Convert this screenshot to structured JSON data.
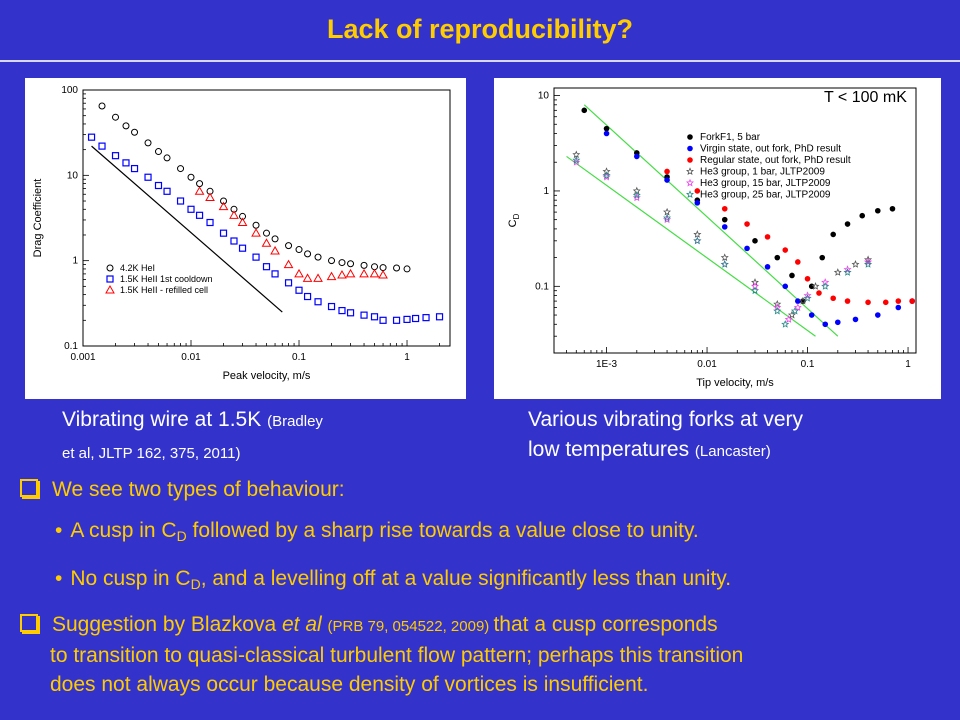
{
  "slide": {
    "title": "Lack of reproducibility?"
  },
  "captions": {
    "left_main": "Vibrating wire at 1.5K",
    "left_ref_a": "(Bradley",
    "left_ref_b": "et al,  JLTP 162, 375, 2011)",
    "right_main_a": "Various vibrating forks at very",
    "right_main_b": "low temperatures",
    "right_ref": "(Lancaster)"
  },
  "bullets": {
    "b1": "We see two types of behaviour:",
    "s1_a": "A cusp in C",
    "s1_sub": "D",
    "s1_b": " followed by a sharp rise towards a value close to unity.",
    "s2_a": "No cusp in C",
    "s2_sub": "D",
    "s2_b": ",  and a levelling off at a value significantly less than unity.",
    "b2_a": "Suggestion by Blazkova",
    "b2_em": " et al ",
    "b2_ref": " (PRB 79, 054522, 2009) ",
    "b2_b": "that a cusp corresponds",
    "b2_line2": "to transition to quasi-classical turbulent flow pattern;  perhaps this transition",
    "b2_line3": "does not always occur because density of vortices is insufficient."
  },
  "colors": {
    "background": "#3333cc",
    "title": "#ffcc00",
    "bullets": "#ffcc00",
    "captions": "#ffffff"
  },
  "chart_data": [
    {
      "type": "scatter",
      "xlabel": "Peak velocity, m/s",
      "ylabel": "Drag Coefficient",
      "xscale": "log",
      "yscale": "log",
      "xlim": [
        0.001,
        2.5
      ],
      "ylim": [
        0.1,
        100
      ],
      "xticks": [
        "0.001",
        "0.01",
        "0.1",
        "1"
      ],
      "yticks": [
        "0.1",
        "1",
        "10",
        "100"
      ],
      "legend_position": "lower-left",
      "series": [
        {
          "name": "4.2K HeI",
          "marker": "circle",
          "color": "#000000",
          "x": [
            0.0015,
            0.002,
            0.0025,
            0.003,
            0.004,
            0.005,
            0.006,
            0.008,
            0.01,
            0.012,
            0.015,
            0.02,
            0.025,
            0.03,
            0.04,
            0.05,
            0.06,
            0.08,
            0.1,
            0.12,
            0.15,
            0.2,
            0.25,
            0.3,
            0.4,
            0.5,
            0.6,
            0.8,
            1.0
          ],
          "y": [
            65,
            48,
            38,
            32,
            24,
            19,
            16,
            12,
            9.5,
            8,
            6.5,
            5,
            4,
            3.3,
            2.6,
            2.1,
            1.8,
            1.5,
            1.35,
            1.2,
            1.1,
            1.0,
            0.95,
            0.92,
            0.88,
            0.85,
            0.83,
            0.82,
            0.8
          ]
        },
        {
          "name": "1.5K HeII 1st cooldown",
          "marker": "square",
          "color": "#0000ff",
          "x": [
            0.0012,
            0.0015,
            0.002,
            0.0025,
            0.003,
            0.004,
            0.005,
            0.006,
            0.008,
            0.01,
            0.012,
            0.015,
            0.02,
            0.025,
            0.03,
            0.04,
            0.05,
            0.06,
            0.08,
            0.1,
            0.12,
            0.15,
            0.2,
            0.25,
            0.3,
            0.4,
            0.5,
            0.6,
            0.8,
            1.0,
            1.2,
            1.5,
            2.0
          ],
          "y": [
            28,
            22,
            17,
            14,
            12,
            9.5,
            7.6,
            6.5,
            5,
            4,
            3.4,
            2.8,
            2.1,
            1.7,
            1.4,
            1.1,
            0.85,
            0.7,
            0.55,
            0.45,
            0.38,
            0.33,
            0.29,
            0.26,
            0.245,
            0.23,
            0.22,
            0.2,
            0.2,
            0.205,
            0.21,
            0.215,
            0.22
          ]
        },
        {
          "name": "1.5K HeII - refilled cell",
          "marker": "triangle",
          "color": "#ff0000",
          "x": [
            0.012,
            0.015,
            0.02,
            0.025,
            0.03,
            0.04,
            0.05,
            0.06,
            0.08,
            0.1,
            0.12,
            0.15,
            0.2,
            0.25,
            0.3,
            0.4,
            0.5,
            0.6
          ],
          "y": [
            6.5,
            5.5,
            4.3,
            3.4,
            2.8,
            2.1,
            1.6,
            1.3,
            0.9,
            0.7,
            0.62,
            0.62,
            0.65,
            0.68,
            0.7,
            0.7,
            0.7,
            0.68
          ]
        }
      ]
    },
    {
      "type": "scatter",
      "title": "T < 100 mK",
      "xlabel": "Tip velocity, m/s",
      "ylabel": "C",
      "ylabel_sub": "D",
      "xscale": "log",
      "yscale": "log",
      "xlim": [
        0.0003,
        1.2
      ],
      "ylim": [
        0.02,
        12
      ],
      "xticks": [
        "1E-3",
        "0.01",
        "0.1",
        "1"
      ],
      "yticks": [
        "0.1",
        "1",
        "10"
      ],
      "legend_position": "top-right",
      "series": [
        {
          "name": "ForkF1, 5 bar",
          "marker": "circle",
          "color": "#000000",
          "x": [
            0.0006,
            0.001,
            0.002,
            0.004,
            0.008,
            0.015,
            0.03,
            0.05,
            0.07,
            0.09,
            0.11,
            0.14,
            0.18,
            0.25,
            0.35,
            0.5,
            0.7
          ],
          "y": [
            7,
            4.5,
            2.5,
            1.4,
            0.8,
            0.5,
            0.3,
            0.2,
            0.13,
            0.07,
            0.1,
            0.2,
            0.35,
            0.45,
            0.55,
            0.62,
            0.65
          ]
        },
        {
          "name": "Virgin state, out fork, PhD result",
          "marker": "circle",
          "color": "#0000ff",
          "x": [
            0.001,
            0.002,
            0.004,
            0.008,
            0.015,
            0.025,
            0.04,
            0.06,
            0.08,
            0.11,
            0.15,
            0.2,
            0.3,
            0.5,
            0.8,
            1.1
          ],
          "y": [
            4,
            2.3,
            1.3,
            0.75,
            0.42,
            0.25,
            0.16,
            0.1,
            0.07,
            0.05,
            0.04,
            0.042,
            0.045,
            0.05,
            0.06,
            0.07
          ]
        },
        {
          "name": "Regular state, out fork, PhD result",
          "marker": "circle",
          "color": "#ff0000",
          "x": [
            0.004,
            0.008,
            0.015,
            0.025,
            0.04,
            0.06,
            0.08,
            0.1,
            0.13,
            0.18,
            0.25,
            0.4,
            0.6,
            0.8,
            1.1
          ],
          "y": [
            1.6,
            1.0,
            0.65,
            0.45,
            0.33,
            0.24,
            0.18,
            0.12,
            0.085,
            0.075,
            0.07,
            0.068,
            0.068,
            0.07,
            0.07
          ]
        },
        {
          "name": "He3 group, 1 bar, JLTP2009",
          "marker": "star",
          "color": "#555555",
          "x": [
            0.0005,
            0.001,
            0.002,
            0.004,
            0.008,
            0.015,
            0.03,
            0.05,
            0.07,
            0.09,
            0.12,
            0.2,
            0.3,
            0.4
          ],
          "y": [
            2.4,
            1.6,
            1.0,
            0.6,
            0.35,
            0.2,
            0.11,
            0.065,
            0.05,
            0.07,
            0.1,
            0.14,
            0.17,
            0.19
          ]
        },
        {
          "name": "He3 group, 15 bar, JLTP2009",
          "marker": "star",
          "color": "#ee44ee",
          "x": [
            0.0005,
            0.001,
            0.002,
            0.004,
            0.008,
            0.015,
            0.03,
            0.05,
            0.065,
            0.08,
            0.1,
            0.15,
            0.25,
            0.4
          ],
          "y": [
            2.0,
            1.4,
            0.85,
            0.5,
            0.3,
            0.17,
            0.1,
            0.06,
            0.045,
            0.06,
            0.08,
            0.11,
            0.15,
            0.18
          ]
        },
        {
          "name": "He3 group, 25 bar, JLTP2009",
          "marker": "star",
          "color": "#228888",
          "x": [
            0.0005,
            0.001,
            0.002,
            0.004,
            0.008,
            0.015,
            0.03,
            0.05,
            0.06,
            0.075,
            0.1,
            0.15,
            0.25,
            0.4
          ],
          "y": [
            2.1,
            1.45,
            0.9,
            0.52,
            0.3,
            0.17,
            0.09,
            0.055,
            0.04,
            0.055,
            0.075,
            0.1,
            0.14,
            0.17
          ]
        }
      ]
    }
  ]
}
